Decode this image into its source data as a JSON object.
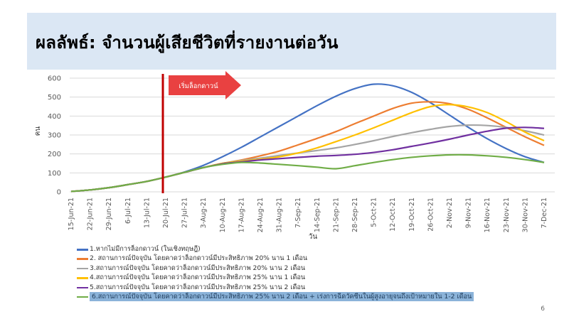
{
  "slide": {
    "title": "ผลลัพธ์: จำนวนผู้เสียชีวิตที่รายงานต่อวัน",
    "page_number": "6",
    "background_color": "#dbe7f4"
  },
  "chart_data": {
    "type": "line",
    "ylabel": "คน",
    "xlabel": "วัน",
    "ylim": [
      0,
      600
    ],
    "yticks": [
      0,
      100,
      200,
      300,
      400,
      500,
      600
    ],
    "categories": [
      "15-Jun-21",
      "22-Jun-21",
      "29-Jun-21",
      "6-Jul-21",
      "13-Jul-21",
      "20-Jul-21",
      "27-Jul-21",
      "3-Aug-21",
      "10-Aug-21",
      "17-Aug-21",
      "24-Aug-21",
      "31-Aug-21",
      "7-Sep-21",
      "14-Sep-21",
      "21-Sep-21",
      "28-Sep-21",
      "5-Oct-21",
      "12-Oct-21",
      "19-Oct-21",
      "26-Oct-21",
      "2-Nov-21",
      "9-Nov-21",
      "16-Nov-21",
      "23-Nov-21",
      "30-Nov-21",
      "7-Dec-21"
    ],
    "grid": true,
    "lockdown_marker": {
      "x_index": 5,
      "label": "เริ่มล็อกดาวน์",
      "color": "#c00000"
    },
    "series": [
      {
        "name": "1.หากไม่มีการล็อกดาวน์ (ในเชิงทฤษฎี)",
        "color": "#4472c4",
        "values": [
          2,
          10,
          22,
          38,
          55,
          78,
          105,
          140,
          185,
          235,
          290,
          345,
          400,
          455,
          505,
          545,
          568,
          560,
          525,
          470,
          405,
          340,
          280,
          228,
          185,
          155
        ]
      },
      {
        "name": "2. สถานการณ์ปัจจุบัน โดยคาดว่าล็อกดาวน์มีประสิทธิภาพ 20% นาน 1 เดือน",
        "color": "#ed7d31",
        "values": [
          2,
          10,
          22,
          38,
          55,
          78,
          103,
          128,
          150,
          168,
          190,
          215,
          248,
          282,
          318,
          360,
          400,
          440,
          468,
          475,
          465,
          435,
          390,
          340,
          290,
          245
        ]
      },
      {
        "name": "3.สถานการณ์ปัจจุบัน โดยคาดว่าล็อกดาวน์มีประสิทธิภาพ 20% นาน 2 เดือน",
        "color": "#a5a5a5",
        "values": [
          2,
          10,
          22,
          38,
          55,
          78,
          103,
          128,
          150,
          165,
          178,
          192,
          205,
          218,
          232,
          250,
          270,
          292,
          312,
          330,
          345,
          352,
          350,
          340,
          322,
          300
        ]
      },
      {
        "name": "4.สถานการณ์ปัจจุบัน โดยคาดว่าล็อกดาวน์มีประสิทธิภาพ 25% นาน 1 เดือน",
        "color": "#ffc000",
        "values": [
          2,
          10,
          22,
          38,
          55,
          78,
          103,
          128,
          150,
          162,
          172,
          185,
          205,
          232,
          265,
          300,
          338,
          378,
          418,
          450,
          460,
          448,
          418,
          370,
          315,
          270
        ]
      },
      {
        "name": "5.สถานการณ์ปัจจุบัน โดยคาดว่าล็อกดาวน์มีประสิทธิภาพ 25% นาน 2 เดือน",
        "color": "#7030a0",
        "values": [
          2,
          10,
          22,
          38,
          55,
          78,
          103,
          128,
          148,
          158,
          168,
          175,
          182,
          188,
          192,
          198,
          208,
          222,
          240,
          258,
          278,
          300,
          320,
          336,
          340,
          335
        ]
      },
      {
        "name": "6.สถานการณ์ปัจจุบัน โดยคาดว่าล็อกดาวน์มีประสิทธิภาพ 25% นาน 2 เดือน + เร่งการฉีดวัคซีนในผู้สูงอายุจนถึงเป้าหมายใน 1-2 เดือน",
        "color": "#70ad47",
        "values": [
          2,
          10,
          22,
          38,
          55,
          78,
          103,
          128,
          145,
          155,
          152,
          145,
          138,
          130,
          122,
          138,
          155,
          170,
          182,
          190,
          195,
          195,
          190,
          182,
          170,
          155
        ]
      }
    ]
  }
}
